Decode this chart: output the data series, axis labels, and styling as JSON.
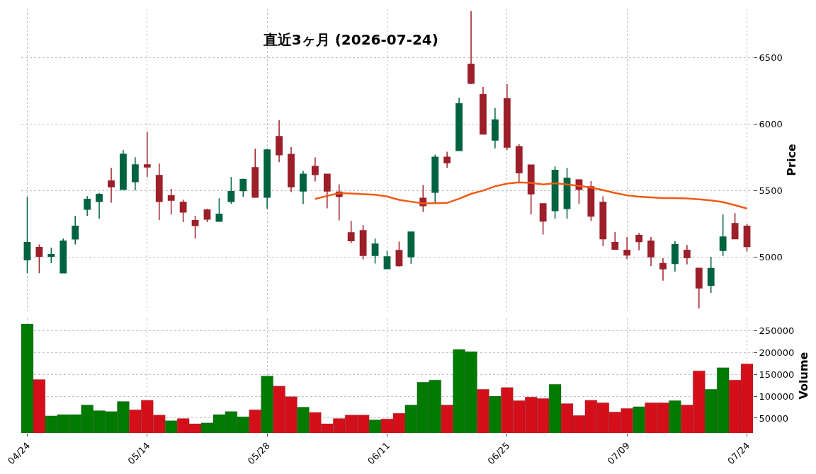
{
  "chart_data": [
    {
      "type": "candlestick",
      "title": "直近3ヶ月 (2026-07-24)",
      "ylabel": "Price",
      "tick_labels": "y",
      "grid": true,
      "ohlc": [
        [
          4977,
          5452,
          4876,
          5108
        ],
        [
          5071,
          5094,
          4876,
          5004
        ],
        [
          5004,
          5069,
          4952,
          5018
        ],
        [
          4879,
          5138,
          4876,
          5119
        ],
        [
          5135,
          5309,
          5094,
          5230
        ],
        [
          5358,
          5457,
          5309,
          5433
        ],
        [
          5417,
          5479,
          5287,
          5470
        ],
        [
          5571,
          5670,
          5408,
          5528
        ],
        [
          5507,
          5803,
          5507,
          5773
        ],
        [
          5566,
          5750,
          5500,
          5693
        ],
        [
          5693,
          5941,
          5601,
          5677
        ],
        [
          5613,
          5702,
          5277,
          5417
        ],
        [
          5459,
          5511,
          5319,
          5427
        ],
        [
          5411,
          5431,
          5261,
          5337
        ],
        [
          5273,
          5309,
          5138,
          5236
        ],
        [
          5353,
          5362,
          5261,
          5284
        ],
        [
          5268,
          5441,
          5268,
          5321
        ],
        [
          5417,
          5601,
          5399,
          5491
        ],
        [
          5498,
          5590,
          5452,
          5582
        ],
        [
          5672,
          5814,
          5449,
          5449
        ],
        [
          5449,
          5814,
          5362,
          5805
        ],
        [
          5906,
          6029,
          5713,
          5768
        ],
        [
          5771,
          5826,
          5488,
          5528
        ],
        [
          5496,
          5647,
          5397,
          5622
        ],
        [
          5681,
          5748,
          5567,
          5619
        ],
        [
          5622,
          5622,
          5365,
          5496
        ],
        [
          5488,
          5546,
          5275,
          5454
        ],
        [
          5181,
          5270,
          5103,
          5122
        ],
        [
          5197,
          5238,
          4980,
          5011
        ],
        [
          5011,
          5137,
          4950,
          5096
        ],
        [
          4911,
          5046,
          4906,
          5000
        ],
        [
          5048,
          5115,
          4927,
          4933
        ],
        [
          5000,
          5186,
          4945,
          5186
        ],
        [
          5441,
          5541,
          5339,
          5385
        ],
        [
          5486,
          5770,
          5406,
          5750
        ],
        [
          5750,
          5791,
          5670,
          5709
        ],
        [
          5800,
          6199,
          5800,
          6153
        ],
        [
          6451,
          6852,
          6300,
          6307
        ],
        [
          6222,
          6279,
          5925,
          5925
        ],
        [
          5879,
          6120,
          5817,
          6031
        ],
        [
          6191,
          6300,
          5803,
          5826
        ],
        [
          5830,
          5849,
          5563,
          5633
        ],
        [
          5692,
          5692,
          5318,
          5474
        ],
        [
          5400,
          5400,
          5168,
          5269
        ],
        [
          5348,
          5681,
          5287,
          5651
        ],
        [
          5364,
          5670,
          5287,
          5591
        ],
        [
          5580,
          5580,
          5398,
          5508
        ],
        [
          5527,
          5570,
          5269,
          5306
        ],
        [
          5410,
          5456,
          5080,
          5136
        ],
        [
          5108,
          5186,
          5058,
          5058
        ],
        [
          5050,
          5150,
          4984,
          5014
        ],
        [
          5161,
          5180,
          5050,
          5115
        ],
        [
          5119,
          5150,
          4931,
          5000
        ],
        [
          4949,
          4989,
          4820,
          4910
        ],
        [
          4950,
          5119,
          4890,
          5092
        ],
        [
          5050,
          5090,
          4943,
          4993
        ],
        [
          4913,
          4917,
          4611,
          4766
        ],
        [
          4786,
          5000,
          4729,
          4912
        ],
        [
          5048,
          5318,
          5007,
          5150
        ],
        [
          5251,
          5329,
          5136,
          5136
        ],
        [
          5230,
          5248,
          5039,
          5078
        ]
      ],
      "colors": [
        "#006340",
        "#9c1f2a",
        "#006340",
        "#006340",
        "#006340",
        "#006340",
        "#006340",
        "#9c1f2a",
        "#006340",
        "#006340",
        "#9c1f2a",
        "#9c1f2a",
        "#9c1f2a",
        "#9c1f2a",
        "#9c1f2a",
        "#9c1f2a",
        "#006340",
        "#006340",
        "#006340",
        "#9c1f2a",
        "#006340",
        "#9c1f2a",
        "#9c1f2a",
        "#006340",
        "#9c1f2a",
        "#9c1f2a",
        "#9c1f2a",
        "#9c1f2a",
        "#9c1f2a",
        "#006340",
        "#006340",
        "#9c1f2a",
        "#006340",
        "#9c1f2a",
        "#006340",
        "#9c1f2a",
        "#006340",
        "#9c1f2a",
        "#9c1f2a",
        "#006340",
        "#9c1f2a",
        "#9c1f2a",
        "#9c1f2a",
        "#9c1f2a",
        "#006340",
        "#006340",
        "#9c1f2a",
        "#9c1f2a",
        "#9c1f2a",
        "#9c1f2a",
        "#9c1f2a",
        "#9c1f2a",
        "#9c1f2a",
        "#9c1f2a",
        "#006340",
        "#9c1f2a",
        "#9c1f2a",
        "#006340",
        "#006340",
        "#9c1f2a",
        "#9c1f2a"
      ],
      "series": [
        {
          "type": "line",
          "color": "#f05a14",
          "values": [
            null,
            null,
            null,
            null,
            null,
            null,
            null,
            null,
            null,
            null,
            null,
            null,
            null,
            null,
            null,
            null,
            null,
            null,
            null,
            null,
            null,
            null,
            null,
            null,
            5436,
            5459,
            5479,
            5477,
            5472,
            5468,
            5454,
            5429,
            5415,
            5402,
            5404,
            5406,
            5438,
            5474,
            5499,
            5531,
            5552,
            5561,
            5557,
            5545,
            5554,
            5545,
            5534,
            5522,
            5502,
            5481,
            5463,
            5453,
            5448,
            5442,
            5442,
            5440,
            5433,
            5425,
            5412,
            5389,
            5364
          ]
        }
      ],
      "ylim": [
        4590,
        6870
      ],
      "yticks": [
        5000,
        5500,
        6000,
        6500
      ]
    },
    {
      "type": "bar",
      "ylabel": "Volume",
      "grid": true,
      "categories": [
        "04/24",
        null,
        null,
        null,
        null,
        null,
        null,
        null,
        null,
        null,
        "05/14",
        null,
        null,
        null,
        null,
        null,
        null,
        null,
        null,
        null,
        "05/28",
        null,
        null,
        null,
        null,
        null,
        null,
        null,
        null,
        null,
        "06/11",
        null,
        null,
        null,
        null,
        null,
        null,
        null,
        null,
        null,
        "06/25",
        null,
        null,
        null,
        null,
        null,
        null,
        null,
        null,
        null,
        "07/09",
        null,
        null,
        null,
        null,
        null,
        null,
        null,
        null,
        null,
        "07/24"
      ],
      "values": [
        265000,
        138000,
        55000,
        58000,
        58000,
        80000,
        67000,
        65000,
        88000,
        69000,
        91000,
        57000,
        44000,
        49000,
        37000,
        39000,
        58000,
        65000,
        53000,
        69000,
        146000,
        123000,
        99000,
        75000,
        63000,
        37000,
        49000,
        57000,
        57000,
        46000,
        48000,
        61000,
        80000,
        132000,
        137000,
        80000,
        207000,
        202000,
        116000,
        100000,
        120000,
        90000,
        98000,
        95000,
        127000,
        83000,
        56000,
        91000,
        85000,
        64000,
        72000,
        76000,
        85000,
        85000,
        90000,
        80000,
        158000,
        116000,
        165000,
        137000,
        174000
      ],
      "colors": [
        "#007a00",
        "#d40f1a",
        "#007a00",
        "#007a00",
        "#007a00",
        "#007a00",
        "#007a00",
        "#007a00",
        "#007a00",
        "#d40f1a",
        "#d40f1a",
        "#d40f1a",
        "#007a00",
        "#d40f1a",
        "#d40f1a",
        "#007a00",
        "#007a00",
        "#007a00",
        "#007a00",
        "#d40f1a",
        "#007a00",
        "#d40f1a",
        "#d40f1a",
        "#007a00",
        "#d40f1a",
        "#d40f1a",
        "#d40f1a",
        "#d40f1a",
        "#d40f1a",
        "#007a00",
        "#d40f1a",
        "#d40f1a",
        "#007a00",
        "#007a00",
        "#007a00",
        "#d40f1a",
        "#007a00",
        "#007a00",
        "#d40f1a",
        "#007a00",
        "#d40f1a",
        "#d40f1a",
        "#d40f1a",
        "#d40f1a",
        "#007a00",
        "#d40f1a",
        "#d40f1a",
        "#d40f1a",
        "#d40f1a",
        "#d40f1a",
        "#d40f1a",
        "#007a00",
        "#d40f1a",
        "#d40f1a",
        "#007a00",
        "#d40f1a",
        "#d40f1a",
        "#007a00",
        "#007a00",
        "#d40f1a",
        "#d40f1a"
      ],
      "ylim": [
        16000,
        278000
      ],
      "yticks": [
        50000,
        100000,
        150000,
        200000,
        250000
      ]
    }
  ]
}
